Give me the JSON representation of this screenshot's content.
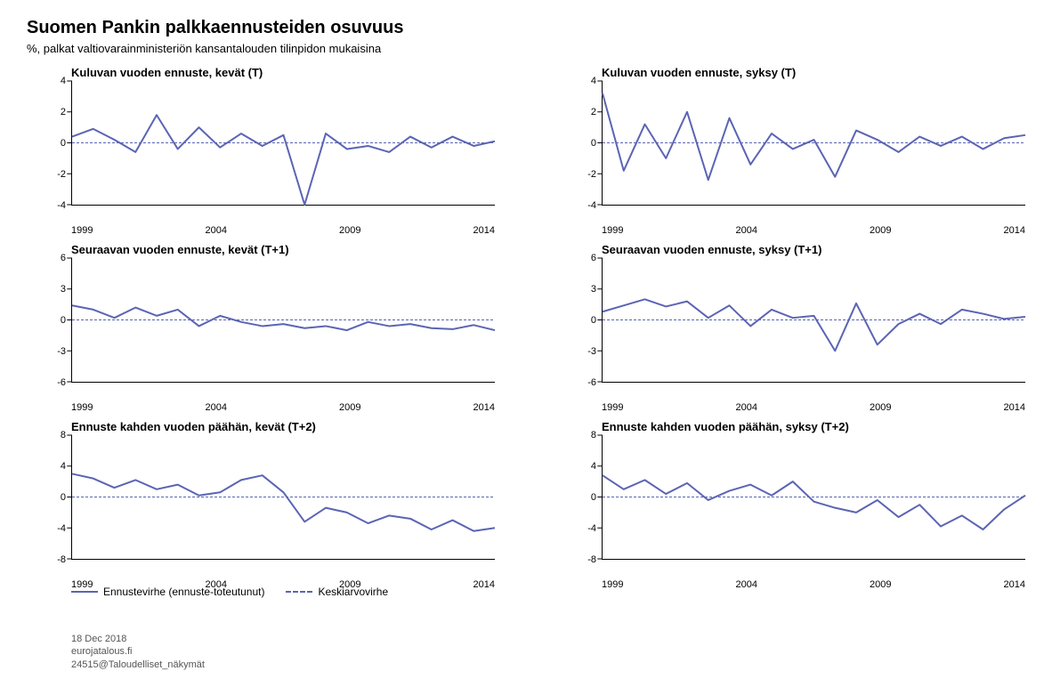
{
  "title": "Suomen Pankin palkkaennusteiden osuvuus",
  "subtitle": "%, palkat valtiovarainministeriön kansantalouden tilinpidon mukaisina",
  "line_color": "#5b64b4",
  "dash_color": "#5b64b4",
  "bg_color": "#ffffff",
  "axis_color": "#000000",
  "tick_fontsize": 11,
  "title_fontsize": 13,
  "line_width": 2,
  "x_years": [
    "1999",
    "2004",
    "2009",
    "2014"
  ],
  "legend": [
    {
      "label": "Ennustevirhe (ennuste-toteutunut)",
      "kind": "solid"
    },
    {
      "label": "Keskiarvovirhe",
      "kind": "dashed"
    }
  ],
  "charts": [
    {
      "title": "Kuluvan vuoden ennuste, kevät (T)",
      "ylim": [
        -4,
        4
      ],
      "ytick_step": 2,
      "mean": 0,
      "values": [
        0.4,
        0.9,
        0.2,
        -0.6,
        1.8,
        -0.4,
        1.0,
        -0.3,
        0.6,
        -0.2,
        0.5,
        -4.0,
        0.6,
        -0.4,
        -0.2,
        -0.6,
        0.4,
        -0.3,
        0.4,
        -0.2,
        0.1
      ]
    },
    {
      "title": "Kuluvan vuoden ennuste, syksy (T)",
      "ylim": [
        -4,
        4
      ],
      "ytick_step": 2,
      "mean": 0,
      "values": [
        3.2,
        -1.8,
        1.2,
        -1.0,
        2.0,
        -2.4,
        1.6,
        -1.4,
        0.6,
        -0.4,
        0.2,
        -2.2,
        0.8,
        0.2,
        -0.6,
        0.4,
        -0.2,
        0.4,
        -0.4,
        0.3,
        0.5
      ]
    },
    {
      "title": "Seuraavan vuoden ennuste, kevät (T+1)",
      "ylim": [
        -6,
        6
      ],
      "ytick_step": 3,
      "mean": 0,
      "values": [
        1.4,
        1.0,
        0.2,
        1.2,
        0.4,
        1.0,
        -0.6,
        0.4,
        -0.2,
        -0.6,
        -0.4,
        -0.8,
        -0.6,
        -1.0,
        -0.2,
        -0.6,
        -0.4,
        -0.8,
        -0.9,
        -0.5,
        -1.0
      ]
    },
    {
      "title": "Seuraavan vuoden ennuste, syksy (T+1)",
      "ylim": [
        -6,
        6
      ],
      "ytick_step": 3,
      "mean": 0,
      "values": [
        0.8,
        1.4,
        2.0,
        1.3,
        1.8,
        0.2,
        1.4,
        -0.6,
        1.0,
        0.2,
        0.4,
        -3.0,
        1.6,
        -2.4,
        -0.4,
        0.6,
        -0.4,
        1.0,
        0.6,
        0.1,
        0.3
      ]
    },
    {
      "title": "Ennuste kahden vuoden päähän, kevät (T+2)",
      "ylim": [
        -8,
        8
      ],
      "ytick_step": 4,
      "mean": 0,
      "values": [
        3.0,
        2.4,
        1.2,
        2.2,
        1.0,
        1.6,
        0.2,
        0.6,
        2.2,
        2.8,
        0.6,
        -3.2,
        -1.4,
        -2.0,
        -3.4,
        -2.4,
        -2.8,
        -4.2,
        -3.0,
        -4.4,
        -4.0
      ]
    },
    {
      "title": "Ennuste kahden vuoden päähän, syksy (T+2)",
      "ylim": [
        -8,
        8
      ],
      "ytick_step": 4,
      "mean": 0,
      "values": [
        2.8,
        1.0,
        2.2,
        0.4,
        1.8,
        -0.4,
        0.8,
        1.6,
        0.2,
        2.0,
        -0.6,
        -1.4,
        -2.0,
        -0.4,
        -2.6,
        -1.0,
        -3.8,
        -2.4,
        -4.2,
        -1.6,
        0.2
      ]
    }
  ],
  "footer": {
    "line1": "18 Dec 2018",
    "line2": "eurojatalous.fi",
    "line3": "24515@Taloudelliset_näkymät"
  }
}
